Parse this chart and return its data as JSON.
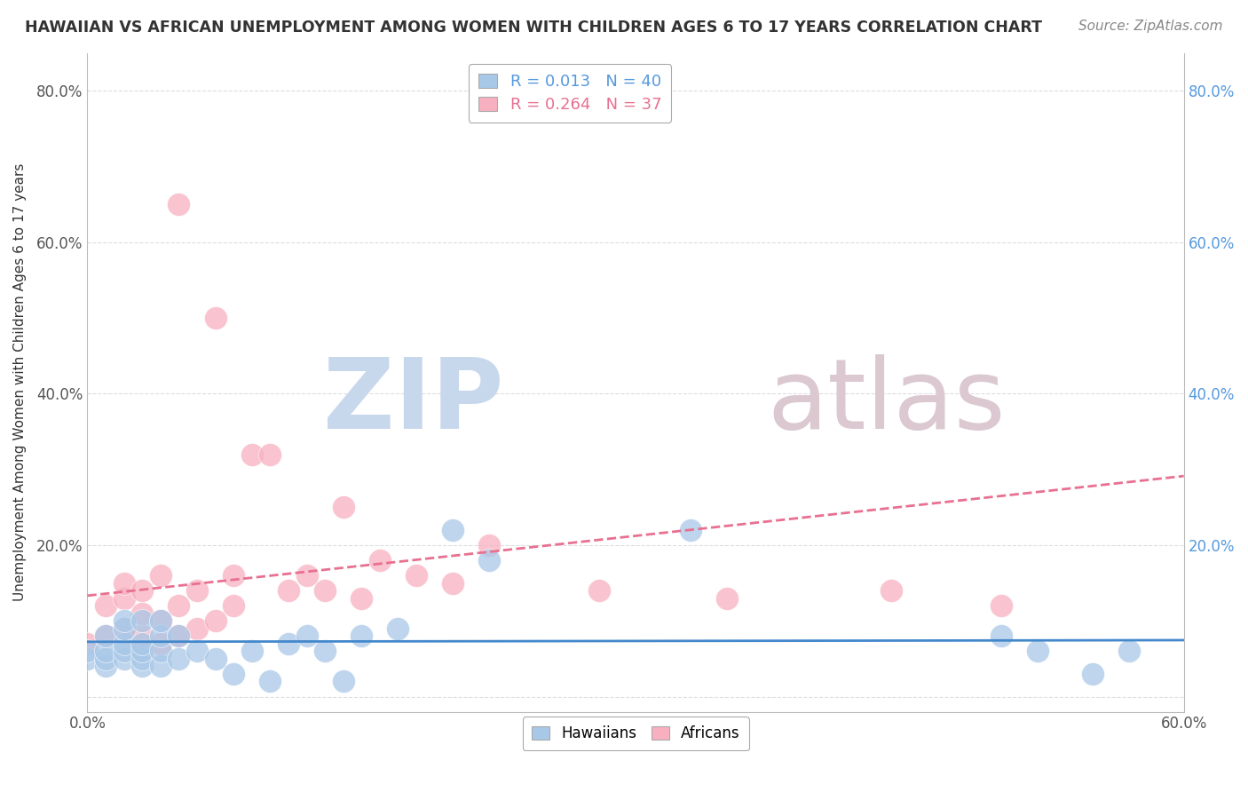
{
  "title": "HAWAIIAN VS AFRICAN UNEMPLOYMENT AMONG WOMEN WITH CHILDREN AGES 6 TO 17 YEARS CORRELATION CHART",
  "source": "Source: ZipAtlas.com",
  "ylabel": "Unemployment Among Women with Children Ages 6 to 17 years",
  "xlim": [
    0.0,
    0.6
  ],
  "ylim": [
    -0.02,
    0.85
  ],
  "yticks": [
    0.0,
    0.2,
    0.4,
    0.6,
    0.8
  ],
  "xticks": [
    0.0,
    0.15,
    0.3,
    0.45,
    0.6
  ],
  "xtick_labels": [
    "0.0%",
    "",
    "",
    "",
    "60.0%"
  ],
  "ytick_labels_left": [
    "",
    "20.0%",
    "40.0%",
    "60.0%",
    "80.0%"
  ],
  "ytick_labels_right": [
    "",
    "20.0%",
    "40.0%",
    "60.0%",
    "80.0%"
  ],
  "hawaiian_R": 0.013,
  "hawaiian_N": 40,
  "african_R": 0.264,
  "african_N": 37,
  "hawaiian_color": "#a8c8e8",
  "african_color": "#f8b0c0",
  "hawaiian_line_color": "#4488cc",
  "african_line_color": "#e87090",
  "hawaiian_x": [
    0.0,
    0.0,
    0.01,
    0.01,
    0.01,
    0.01,
    0.02,
    0.02,
    0.02,
    0.02,
    0.02,
    0.03,
    0.03,
    0.03,
    0.03,
    0.03,
    0.04,
    0.04,
    0.04,
    0.04,
    0.05,
    0.05,
    0.06,
    0.07,
    0.08,
    0.09,
    0.1,
    0.11,
    0.12,
    0.13,
    0.14,
    0.15,
    0.17,
    0.2,
    0.22,
    0.33,
    0.5,
    0.52,
    0.55,
    0.57
  ],
  "hawaiian_y": [
    0.05,
    0.06,
    0.04,
    0.05,
    0.06,
    0.08,
    0.05,
    0.06,
    0.07,
    0.09,
    0.1,
    0.04,
    0.05,
    0.06,
    0.07,
    0.1,
    0.04,
    0.06,
    0.08,
    0.1,
    0.05,
    0.08,
    0.06,
    0.05,
    0.03,
    0.06,
    0.02,
    0.07,
    0.08,
    0.06,
    0.02,
    0.08,
    0.09,
    0.22,
    0.18,
    0.22,
    0.08,
    0.06,
    0.03,
    0.06
  ],
  "african_x": [
    0.0,
    0.01,
    0.01,
    0.02,
    0.02,
    0.02,
    0.03,
    0.03,
    0.03,
    0.03,
    0.04,
    0.04,
    0.04,
    0.05,
    0.05,
    0.05,
    0.06,
    0.06,
    0.07,
    0.07,
    0.08,
    0.08,
    0.09,
    0.1,
    0.11,
    0.12,
    0.13,
    0.14,
    0.15,
    0.16,
    0.18,
    0.2,
    0.22,
    0.28,
    0.35,
    0.44,
    0.5
  ],
  "african_y": [
    0.07,
    0.08,
    0.12,
    0.09,
    0.13,
    0.15,
    0.06,
    0.08,
    0.11,
    0.14,
    0.07,
    0.1,
    0.16,
    0.08,
    0.12,
    0.65,
    0.09,
    0.14,
    0.1,
    0.5,
    0.12,
    0.16,
    0.32,
    0.32,
    0.14,
    0.16,
    0.14,
    0.25,
    0.13,
    0.18,
    0.16,
    0.15,
    0.2,
    0.14,
    0.13,
    0.14,
    0.12
  ],
  "background_color": "#ffffff",
  "grid_color": "#dddddd",
  "watermark_zip_color": "#c8d8ec",
  "watermark_atlas_color": "#dcc8d0"
}
